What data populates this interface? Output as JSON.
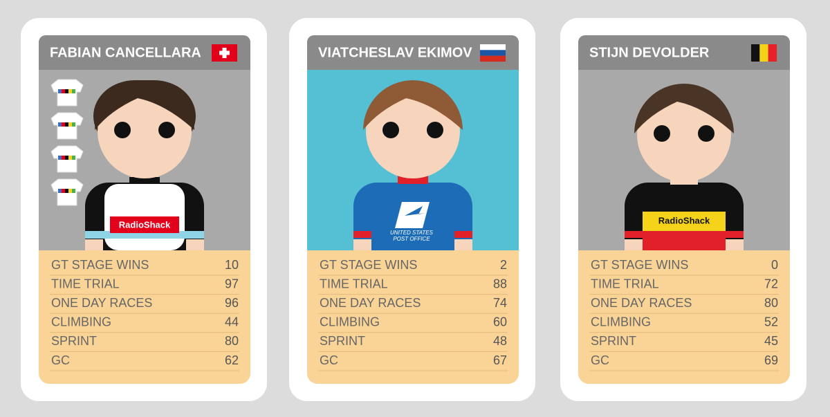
{
  "cards": [
    {
      "name": "FABIAN CANCELLARA",
      "jersey_text": [
        "RadioShack"
      ],
      "stats": [
        {
          "label": "GT STAGE WINS",
          "value": 10
        },
        {
          "label": "TIME TRIAL",
          "value": 97
        },
        {
          "label": "ONE DAY RACES",
          "value": 96
        },
        {
          "label": "CLIMBING",
          "value": 44
        },
        {
          "label": "SPRINT",
          "value": 80
        },
        {
          "label": "GC",
          "value": 62
        }
      ]
    },
    {
      "name": "VIATCHESLAV EKIMOV",
      "jersey_text": [
        "UNITED STATES",
        "POST OFFICE"
      ],
      "stats": [
        {
          "label": "GT STAGE WINS",
          "value": 2
        },
        {
          "label": "TIME TRIAL",
          "value": 88
        },
        {
          "label": "ONE DAY RACES",
          "value": 74
        },
        {
          "label": "CLIMBING",
          "value": 60
        },
        {
          "label": "SPRINT",
          "value": 48
        },
        {
          "label": "GC",
          "value": 67
        }
      ]
    },
    {
      "name": "STIJN DEVOLDER",
      "jersey_text": [
        "RadioShack"
      ],
      "stats": [
        {
          "label": "GT STAGE WINS",
          "value": 0
        },
        {
          "label": "TIME TRIAL",
          "value": 72
        },
        {
          "label": "ONE DAY RACES",
          "value": 80
        },
        {
          "label": "CLIMBING",
          "value": 52
        },
        {
          "label": "SPRINT",
          "value": 45
        },
        {
          "label": "GC",
          "value": 69
        }
      ]
    }
  ]
}
